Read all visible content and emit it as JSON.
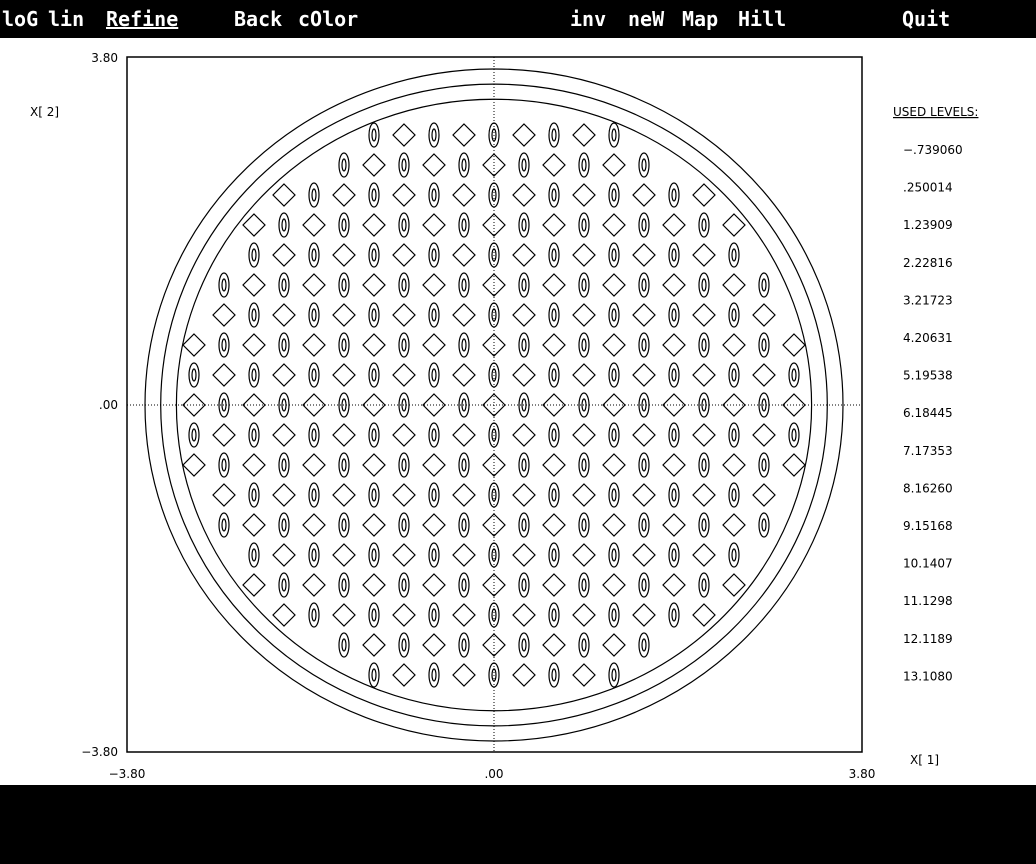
{
  "menu": [
    "loG",
    "lin",
    "Refine",
    "Back",
    "cOlor",
    "inv",
    "neW",
    "Map",
    "Hill",
    "Quit"
  ],
  "plot": {
    "y_label": "X[  2]",
    "x_label": "X[  1]",
    "y_ticks": [
      "3.80",
      ".00",
      "−3.80"
    ],
    "x_ticks": [
      "−3.80",
      ".00",
      "3.80"
    ]
  },
  "levels": {
    "title": "USED LEVELS:",
    "values": [
      "−.739060",
      ".250014",
      "1.23909",
      "2.22816",
      "3.21723",
      "4.20631",
      "5.19538",
      "6.18445",
      "7.17353",
      "8.16260",
      "9.15168",
      "10.1407",
      "11.1298",
      "12.1189",
      "13.1080"
    ]
  }
}
